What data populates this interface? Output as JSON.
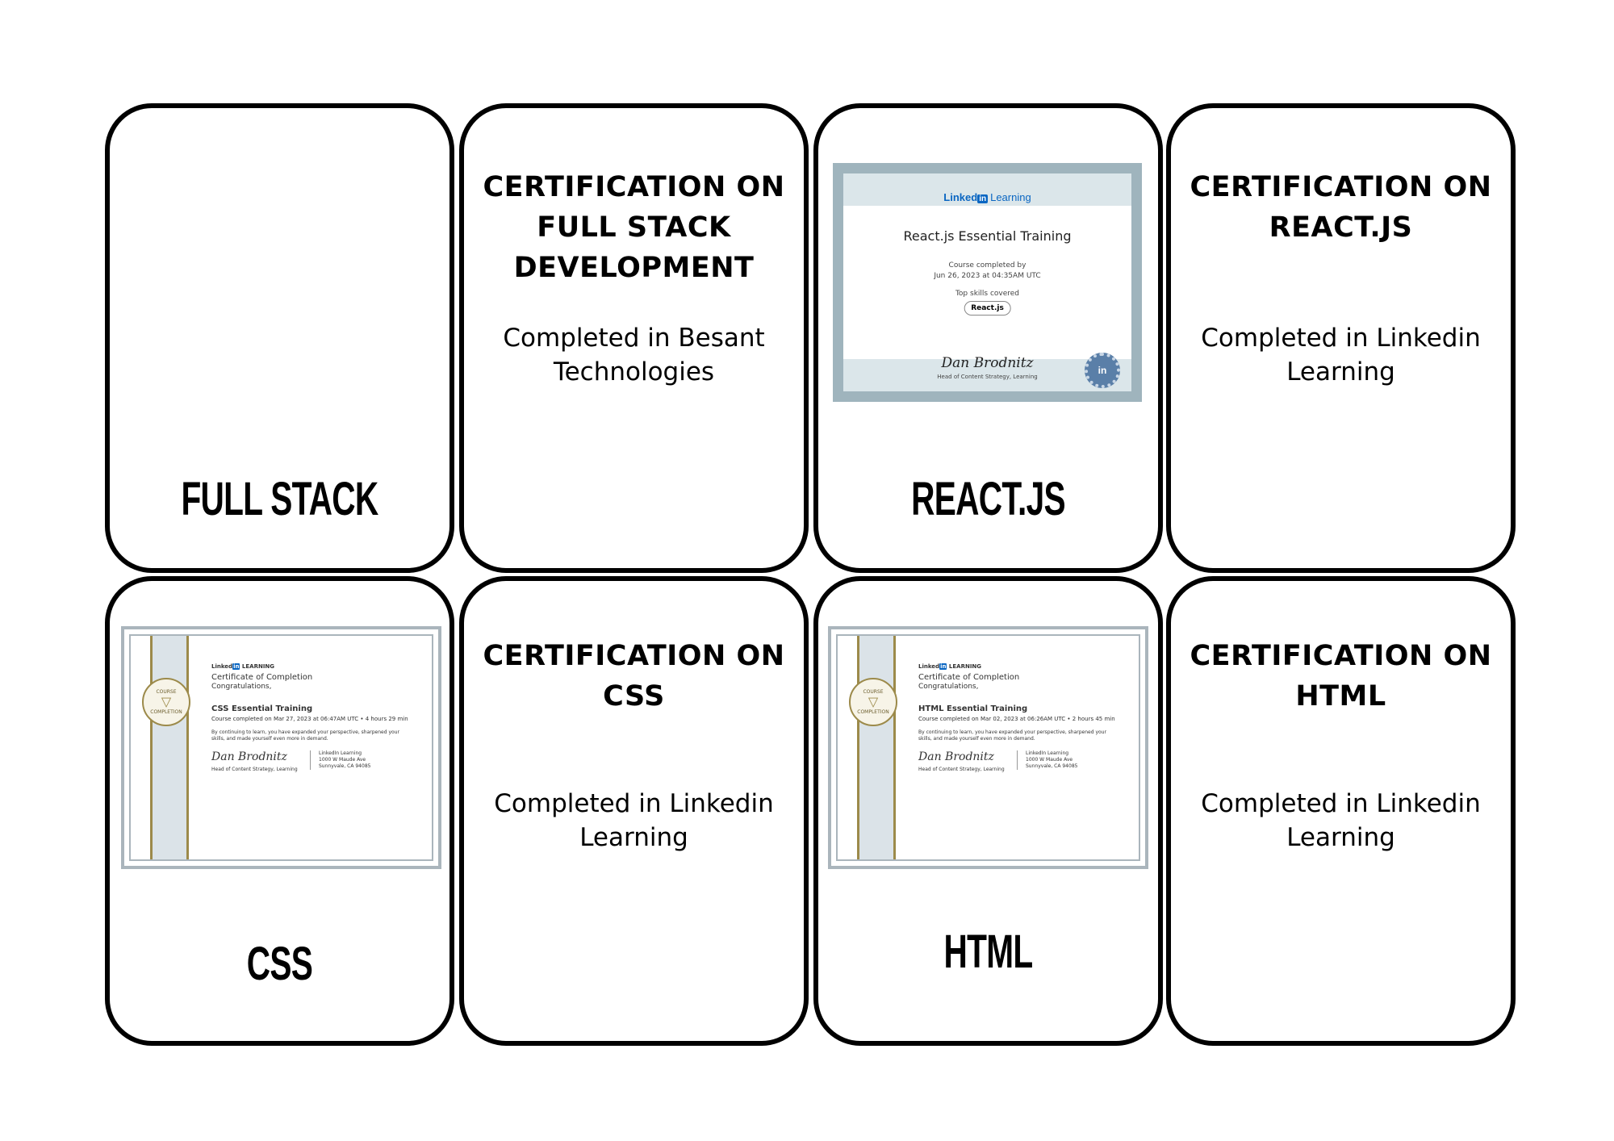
{
  "cards": {
    "fullstack_label": "FULL STACK",
    "fullstack_heading": [
      "CERTIFICATION ON",
      "FULL STACK",
      "DEVELOPMENT"
    ],
    "fullstack_body": "Completed in  Besant\nTechnologies",
    "react_label": "REACT.JS",
    "react_heading": [
      "CERTIFICATION ON",
      "REACT.JS"
    ],
    "react_body": "Completed in  Linkedin\nLearning",
    "css_label": "CSS",
    "css_heading": [
      "CERTIFICATION ON",
      "CSS"
    ],
    "css_body": "Completed in Linkedin\nLearning",
    "html_label": "HTML",
    "html_heading": [
      "CERTIFICATION ON",
      "HTML"
    ],
    "html_body": "Completed in Linkedin\nLearning"
  },
  "react_cert": {
    "logo_linked": "Linked",
    "logo_in": "in",
    "logo_learning": "Learning",
    "title": "React.js Essential Training",
    "completed_by": "Course completed by",
    "date": "Jun 26, 2023 at 04:35AM UTC",
    "skills_label": "Top skills covered",
    "skill": "React.js",
    "signature": "Dan Brodnitz",
    "signer": "Head of Content Strategy, Learning"
  },
  "css_cert": {
    "logo_linked": "Linked",
    "logo_in": "in",
    "logo_learning": "LEARNING",
    "medal_top": "COURSE",
    "medal_bottom": "COMPLETION",
    "heading": "Certificate of Completion",
    "congrats": "Congratulations,",
    "course": "CSS Essential Training",
    "date": "Course completed on Mar 27, 2023 at 06:47AM UTC  •  4 hours 29 min",
    "para1": "By continuing to learn, you have expanded your perspective, sharpened your",
    "para2": "skills, and made yourself even more in demand.",
    "signature": "Dan Brodnitz",
    "signer": "Head of Content Strategy, Learning",
    "addr1": "LinkedIn Learning",
    "addr2": "1000 W Maude Ave",
    "addr3": "Sunnyvale, CA 94085"
  },
  "html_cert": {
    "logo_linked": "Linked",
    "logo_in": "in",
    "logo_learning": "LEARNING",
    "medal_top": "COURSE",
    "medal_bottom": "COMPLETION",
    "heading": "Certificate of Completion",
    "congrats": "Congratulations,",
    "course": "HTML Essential Training",
    "date": "Course completed on Mar 02, 2023 at 06:26AM UTC  •  2 hours 45 min",
    "para1": "By continuing to learn, you have expanded your perspective, sharpened your",
    "para2": "skills, and made yourself even more in demand.",
    "signature": "Dan Brodnitz",
    "signer": "Head of Content Strategy, Learning",
    "addr1": "LinkedIn Learning",
    "addr2": "1000 W Maude Ave",
    "addr3": "Sunnyvale, CA 94085"
  }
}
